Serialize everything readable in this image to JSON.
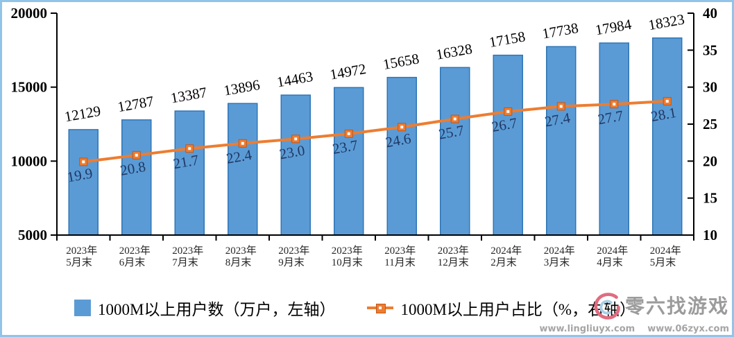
{
  "chart_data": {
    "type": "combo",
    "categories": [
      "2023年|5月末",
      "2023年|6月末",
      "2023年|7月末",
      "2023年|8月末",
      "2023年|9月末",
      "2023年|10月末",
      "2023年|11月末",
      "2023年|12月末",
      "2024年|2月末",
      "2024年|3月末",
      "2024年|4月末",
      "2024年|5月末"
    ],
    "series": [
      {
        "name": "1000M以上用户数（万户，左轴）",
        "type": "bar",
        "axis": "left",
        "color": "#5B9BD5",
        "border_color": "#2E75B6",
        "values": [
          12129,
          12787,
          13387,
          13896,
          14463,
          14972,
          15658,
          16328,
          17158,
          17738,
          17984,
          18323
        ]
      },
      {
        "name": "1000M以上用户占比（%，右轴）",
        "type": "line",
        "axis": "right",
        "color": "#ED7D31",
        "marker_border_color": "#C0561B",
        "values": [
          19.9,
          20.8,
          21.7,
          22.4,
          23.0,
          23.7,
          24.6,
          25.7,
          26.7,
          27.4,
          27.7,
          28.1
        ]
      }
    ],
    "left_axis": {
      "min": 5000,
      "max": 20000,
      "ticks": [
        20000,
        15000,
        10000,
        5000
      ]
    },
    "right_axis": {
      "min": 10,
      "max": 40,
      "ticks": [
        40,
        35,
        30,
        25,
        20,
        15,
        10
      ]
    },
    "grid": false,
    "legend_position": "bottom",
    "bar_label_color": "#000000",
    "line_label_color": "#1F3864"
  },
  "watermark": {
    "title": "零六找游戏",
    "url1": "www.lingliuyx.com",
    "url2": "www.06zyx.com"
  },
  "frame": {
    "border_color": "#92C3E8",
    "background": "#FFFFFF"
  }
}
